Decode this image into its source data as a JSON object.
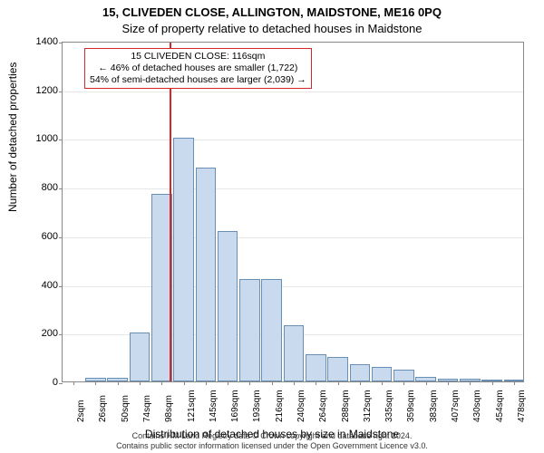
{
  "title_line1": "15, CLIVEDEN CLOSE, ALLINGTON, MAIDSTONE, ME16 0PQ",
  "title_line2": "Size of property relative to detached houses in Maidstone",
  "chart": {
    "type": "histogram",
    "ylabel": "Number of detached properties",
    "xlabel": "Distribution of detached houses by size in Maidstone",
    "ylim": [
      0,
      1400
    ],
    "yticks": [
      0,
      200,
      400,
      600,
      800,
      1000,
      1200,
      1400
    ],
    "xticks": [
      "2sqm",
      "26sqm",
      "50sqm",
      "74sqm",
      "98sqm",
      "121sqm",
      "145sqm",
      "169sqm",
      "193sqm",
      "216sqm",
      "240sqm",
      "264sqm",
      "288sqm",
      "312sqm",
      "335sqm",
      "359sqm",
      "383sqm",
      "407sqm",
      "430sqm",
      "454sqm",
      "478sqm"
    ],
    "bar_values": [
      0,
      15,
      15,
      200,
      770,
      1000,
      880,
      620,
      420,
      420,
      230,
      110,
      100,
      70,
      60,
      50,
      20,
      10,
      10,
      5,
      5
    ],
    "bar_fill": "#c9daee",
    "bar_border": "#6a8fb5",
    "grid_color": "#e6e6e6",
    "background_color": "#ffffff",
    "bar_width": 0.93,
    "vline_index": 4.85,
    "vline_color": "#d62728",
    "annotation": {
      "lines": [
        "15 CLIVEDEN CLOSE: 116sqm",
        "← 46% of detached houses are smaller (1,722)",
        "54% of semi-detached houses are larger (2,039) →"
      ],
      "border_color": "#d62728"
    }
  },
  "footer": {
    "line1": "Contains HM Land Registry data © Crown copyright and database right 2024.",
    "line2": "Contains public sector information licensed under the Open Government Licence v3.0."
  }
}
